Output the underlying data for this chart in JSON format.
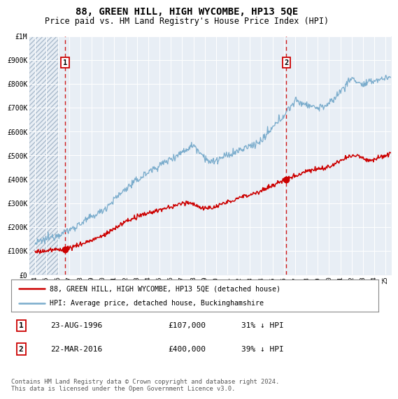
{
  "title": "88, GREEN HILL, HIGH WYCOMBE, HP13 5QE",
  "subtitle": "Price paid vs. HM Land Registry's House Price Index (HPI)",
  "title_fontsize": 10,
  "subtitle_fontsize": 8.5,
  "background_color": "#ffffff",
  "plot_bg_color": "#dce6f0",
  "plot_bg_light": "#e8eef5",
  "hatch_bg_color": "#c8d4e0",
  "grid_color": "#ffffff",
  "red_line_color": "#cc0000",
  "blue_line_color": "#7aaccc",
  "ylim": [
    0,
    1000000
  ],
  "yticks": [
    0,
    100000,
    200000,
    300000,
    400000,
    500000,
    600000,
    700000,
    800000,
    900000,
    1000000
  ],
  "ytick_labels": [
    "£0",
    "£100K",
    "£200K",
    "£300K",
    "£400K",
    "£500K",
    "£600K",
    "£700K",
    "£800K",
    "£900K",
    "£1M"
  ],
  "point1_x": 1996.64,
  "point1_y": 107000,
  "point2_x": 2016.22,
  "point2_y": 400000,
  "legend_red_label": "88, GREEN HILL, HIGH WYCOMBE, HP13 5QE (detached house)",
  "legend_blue_label": "HPI: Average price, detached house, Buckinghamshire",
  "table_row1": [
    "1",
    "23-AUG-1996",
    "£107,000",
    "31% ↓ HPI"
  ],
  "table_row2": [
    "2",
    "22-MAR-2016",
    "£400,000",
    "39% ↓ HPI"
  ],
  "footnote": "Contains HM Land Registry data © Crown copyright and database right 2024.\nThis data is licensed under the Open Government Licence v3.0.",
  "xlim_start": 1993.5,
  "xlim_end": 2025.5,
  "hatch_end": 1996.0
}
